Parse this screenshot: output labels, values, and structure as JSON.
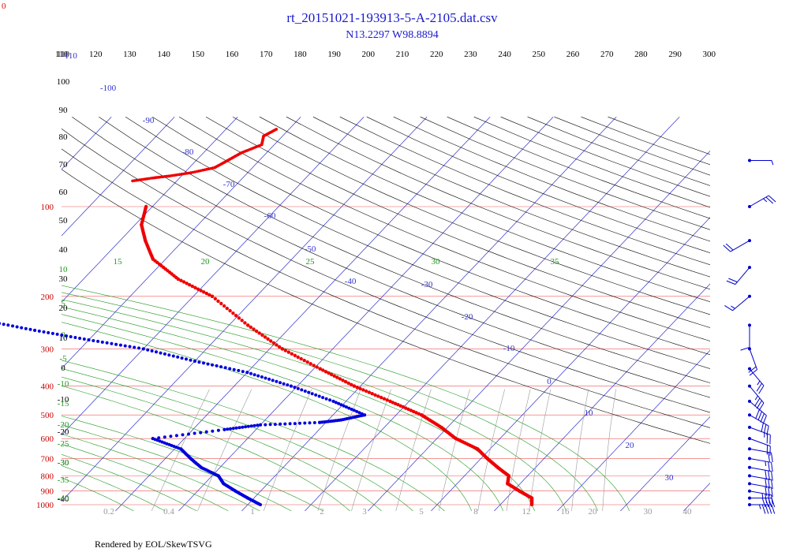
{
  "chart_data": {
    "type": "skew-t",
    "title": "rt_20151021-193913-5-A-2105.dat.csv",
    "subtitle": "N13.2297 W98.8894",
    "footer": "Rendered by EOL/SkewTSVG",
    "corner_label": "0",
    "pressure_levels": [
      100,
      200,
      300,
      400,
      500,
      600,
      700,
      800,
      900,
      1000
    ],
    "top_theta_labels": [
      110,
      120,
      130,
      140,
      150,
      160,
      170,
      180,
      190,
      200,
      210,
      220,
      230,
      240,
      250,
      260,
      270,
      280,
      290,
      300
    ],
    "left_theta_labels": [
      110,
      100,
      90,
      80,
      70,
      60,
      50,
      40,
      30,
      20,
      10,
      0,
      -10,
      -20,
      -30,
      -40
    ],
    "isotherm_labels": [
      "-110",
      "-100",
      "-90",
      "-80",
      "-70",
      "-60",
      "-50",
      "-40",
      "-30",
      "-20",
      "-10",
      "0",
      "10",
      "20",
      "30"
    ],
    "moist_adiabat_labels": [
      "10",
      "5",
      "0",
      "-5",
      "-10",
      "-15",
      "-20",
      "-25",
      "-30",
      "-35",
      "-40"
    ],
    "theta_e_labels": [
      "15",
      "20",
      "25",
      "30",
      "35"
    ],
    "mixing_ratio_labels": [
      "0.2",
      "0.4",
      "1",
      "2",
      "3",
      "5",
      "8",
      "12",
      "16",
      "20",
      "30",
      "40"
    ],
    "temperature_profile": [
      {
        "p": 100,
        "t": -81
      },
      {
        "p": 115,
        "t": -79
      },
      {
        "p": 130,
        "t": -76
      },
      {
        "p": 150,
        "t": -72
      },
      {
        "p": 175,
        "t": -65
      },
      {
        "p": 200,
        "t": -57
      },
      {
        "p": 250,
        "t": -47
      },
      {
        "p": 300,
        "t": -38
      },
      {
        "p": 350,
        "t": -29
      },
      {
        "p": 400,
        "t": -21
      },
      {
        "p": 450,
        "t": -13
      },
      {
        "p": 500,
        "t": -6
      },
      {
        "p": 550,
        "t": -1
      },
      {
        "p": 600,
        "t": 3
      },
      {
        "p": 650,
        "t": 8
      },
      {
        "p": 700,
        "t": 11
      },
      {
        "p": 750,
        "t": 14
      },
      {
        "p": 800,
        "t": 17
      },
      {
        "p": 850,
        "t": 18
      },
      {
        "p": 900,
        "t": 21
      },
      {
        "p": 950,
        "t": 24
      },
      {
        "p": 1000,
        "t": 25
      }
    ],
    "temperature_stratosphere": [
      {
        "p": 55,
        "t": -72
      },
      {
        "p": 58,
        "t": -73
      },
      {
        "p": 62,
        "t": -72
      },
      {
        "p": 66,
        "t": -74
      },
      {
        "p": 70,
        "t": -75
      },
      {
        "p": 74,
        "t": -76
      },
      {
        "p": 77,
        "t": -79
      },
      {
        "p": 79,
        "t": -82
      },
      {
        "p": 80,
        "t": -84
      },
      {
        "p": 82,
        "t": -87
      }
    ],
    "dewpoint_profile": [
      {
        "p": 200,
        "t": -110
      },
      {
        "p": 220,
        "t": -100
      },
      {
        "p": 240,
        "t": -90
      },
      {
        "p": 260,
        "t": -80
      },
      {
        "p": 280,
        "t": -70
      },
      {
        "p": 300,
        "t": -60
      },
      {
        "p": 330,
        "t": -50
      },
      {
        "p": 360,
        "t": -40
      },
      {
        "p": 400,
        "t": -31
      },
      {
        "p": 450,
        "t": -22
      },
      {
        "p": 500,
        "t": -15
      },
      {
        "p": 520,
        "t": -18
      },
      {
        "p": 530,
        "t": -21
      },
      {
        "p": 540,
        "t": -30
      },
      {
        "p": 560,
        "t": -35
      },
      {
        "p": 600,
        "t": -45
      },
      {
        "p": 650,
        "t": -39
      },
      {
        "p": 700,
        "t": -36
      },
      {
        "p": 750,
        "t": -33
      },
      {
        "p": 800,
        "t": -29
      },
      {
        "p": 850,
        "t": -27
      },
      {
        "p": 900,
        "t": -24
      },
      {
        "p": 950,
        "t": -21
      },
      {
        "p": 1000,
        "t": -18
      }
    ],
    "wind_barbs": [
      {
        "p": 70,
        "speed_kt": 5,
        "dir": 90
      },
      {
        "p": 100,
        "speed_kt": 25,
        "dir": 60
      },
      {
        "p": 130,
        "speed_kt": 20,
        "dir": 240
      },
      {
        "p": 160,
        "speed_kt": 20,
        "dir": 220
      },
      {
        "p": 200,
        "speed_kt": 15,
        "dir": 230
      },
      {
        "p": 250,
        "speed_kt": 10,
        "dir": 180
      },
      {
        "p": 300,
        "speed_kt": 20,
        "dir": 160
      },
      {
        "p": 350,
        "speed_kt": 25,
        "dir": 140
      },
      {
        "p": 400,
        "speed_kt": 35,
        "dir": 140
      },
      {
        "p": 450,
        "speed_kt": 40,
        "dir": 130
      },
      {
        "p": 500,
        "speed_kt": 30,
        "dir": 120
      },
      {
        "p": 550,
        "speed_kt": 25,
        "dir": 110
      },
      {
        "p": 600,
        "speed_kt": 20,
        "dir": 110
      },
      {
        "p": 650,
        "speed_kt": 20,
        "dir": 100
      },
      {
        "p": 700,
        "speed_kt": 25,
        "dir": 100
      },
      {
        "p": 750,
        "speed_kt": 30,
        "dir": 100
      },
      {
        "p": 800,
        "speed_kt": 30,
        "dir": 100
      },
      {
        "p": 850,
        "speed_kt": 30,
        "dir": 100
      },
      {
        "p": 900,
        "speed_kt": 35,
        "dir": 100
      },
      {
        "p": 950,
        "speed_kt": 40,
        "dir": 90
      },
      {
        "p": 1000,
        "speed_kt": 45,
        "dir": 90
      }
    ],
    "colors": {
      "title": "#1a1acc",
      "temperature": "#ee0000",
      "dewpoint": "#0000dd",
      "isobar": "#ee5555",
      "isotherm": "#3333cc",
      "dry_adiabat": "#000000",
      "moist_adiabat": "#229922",
      "mixing_ratio": "#999999",
      "wind": "#0000cc"
    }
  }
}
